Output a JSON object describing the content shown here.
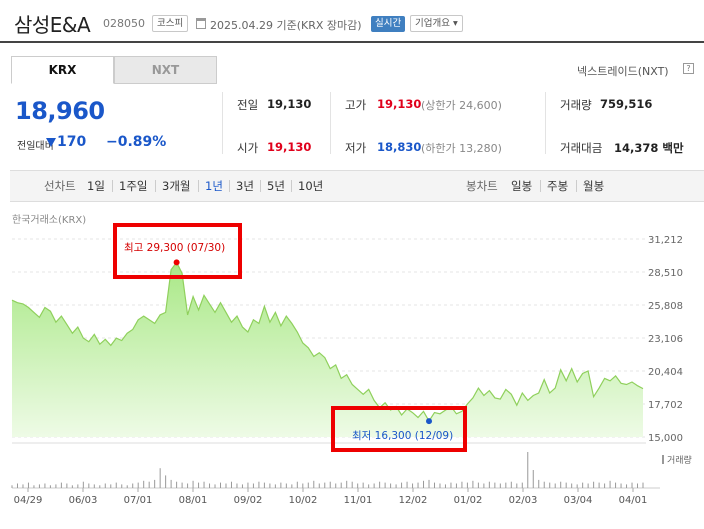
{
  "header": {
    "title": "삼성E&A",
    "code": "028050",
    "market_badge": "코스피",
    "date_text": "2025.04.29  기준(KRX 장마감)",
    "realtime_badge": "실시간",
    "company_badge": "기업개요 ▾"
  },
  "tabs": [
    {
      "label": "KRX",
      "active": true
    },
    {
      "label": "NXT",
      "active": false
    }
  ],
  "nxt_note": "넥스트레이드(NXT)",
  "nxt_help": "?",
  "quote": {
    "price": "18,960",
    "change_label": "전일대비",
    "change_amount": "170",
    "change_pct": "−0.89%",
    "prev_close_label": "전일",
    "prev_close": "19,130",
    "high_label": "고가",
    "high": "19,130",
    "upper_limit": "(상한가 24,600)",
    "volume_label": "거래량",
    "volume": "759,516",
    "open_label": "시가",
    "open": "19,130",
    "low_label": "저가",
    "low": "18,830",
    "lower_limit": "(하한가 13,280)",
    "amount_label": "거래대금",
    "amount": "14,378 백만"
  },
  "range_bar": {
    "line_label": "선차트",
    "line_ranges": [
      "1일",
      "1주일",
      "3개월",
      "1년",
      "3년",
      "5년",
      "10년"
    ],
    "selected": "1년",
    "candle_label": "봉차트",
    "candle_ranges": [
      "일봉",
      "주봉",
      "월봉"
    ]
  },
  "chart_source": "한국거래소(KRX)",
  "colors": {
    "price_blue": "#1a57c9",
    "price_red": "#e0001b",
    "area_fill": "#c5f0a8",
    "line": "#8fd05c",
    "annotation": "#e00000"
  },
  "chart_data": {
    "type": "area",
    "y_ticks": [
      "31,212",
      "28,510",
      "25,808",
      "23,106",
      "20,404",
      "17,702",
      "15,000"
    ],
    "ylim": [
      15000,
      31212
    ],
    "x_ticks": [
      "04/29",
      "06/03",
      "07/01",
      "08/01",
      "09/02",
      "10/02",
      "11/01",
      "12/02",
      "01/02",
      "02/03",
      "03/04",
      "04/01"
    ],
    "series": [
      {
        "values": [
          26200,
          26000,
          25900,
          25600,
          25200,
          24800,
          25600,
          25300,
          24400,
          24900,
          24200,
          23500,
          24000,
          23100,
          22800,
          23400,
          22600,
          23000,
          22500,
          23100,
          22900,
          23500,
          23800,
          24600,
          24900,
          24600,
          24300,
          25000,
          25200,
          28700,
          29300,
          28400,
          25000,
          26500,
          25400,
          26600,
          25900,
          25200,
          26000,
          25200,
          24400,
          24900,
          24000,
          23600,
          24600,
          24300,
          25700,
          24400,
          25200,
          24100,
          24900,
          24300,
          23600,
          22700,
          22300,
          21600,
          21900,
          21500,
          20600,
          20900,
          19800,
          20100,
          19300,
          18900,
          18500,
          18900,
          18000,
          17400,
          17800,
          17200,
          17500,
          16800,
          17300,
          17000,
          16600,
          17100,
          16300,
          17000,
          16900,
          17200,
          17500,
          16900,
          17100,
          17700,
          18200,
          19000,
          18400,
          18800,
          18200,
          18100,
          18900,
          18500,
          17600,
          18600,
          18000,
          18400,
          18600,
          19700,
          18600,
          19000,
          20500,
          19600,
          20600,
          19500,
          20200,
          20400,
          18300,
          19000,
          19800,
          19600,
          20000,
          19400,
          19300,
          19500,
          19200,
          18960
        ]
      }
    ],
    "annotations": [
      {
        "label": "최고 29,300 (07/30)",
        "value": 29300
      },
      {
        "label": "최저 16,300 (12/09)",
        "value": 16300
      }
    ],
    "volume_label": "거래량",
    "volume": [
      3,
      5,
      4,
      6,
      3,
      4,
      5,
      3,
      4,
      6,
      5,
      3,
      4,
      7,
      5,
      4,
      3,
      5,
      4,
      6,
      4,
      3,
      5,
      6,
      8,
      7,
      9,
      22,
      14,
      9,
      7,
      6,
      5,
      8,
      6,
      7,
      5,
      4,
      6,
      5,
      7,
      5,
      4,
      6,
      5,
      7,
      6,
      5,
      4,
      6,
      5,
      4,
      7,
      5,
      6,
      8,
      5,
      6,
      7,
      5,
      6,
      8,
      7,
      5,
      6,
      4,
      5,
      7,
      6,
      5,
      4,
      6,
      7,
      5,
      6,
      8,
      9,
      6,
      5,
      4,
      6,
      5,
      7,
      6,
      8,
      6,
      5,
      7,
      6,
      5,
      6,
      7,
      5,
      6,
      40,
      20,
      9,
      7,
      6,
      5,
      7,
      6,
      5,
      4,
      6,
      5,
      7,
      6,
      5,
      8,
      6,
      5,
      4,
      6,
      5,
      6
    ]
  }
}
